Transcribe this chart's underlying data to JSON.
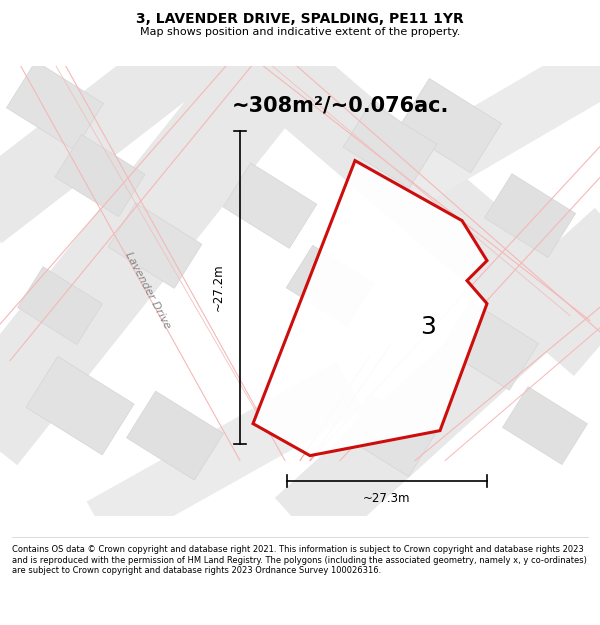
{
  "title": "3, LAVENDER DRIVE, SPALDING, PE11 1YR",
  "subtitle": "Map shows position and indicative extent of the property.",
  "area_label": "~308m²/~0.076ac.",
  "plot_number": "3",
  "dim_vertical": "~27.2m",
  "dim_horizontal": "~27.3m",
  "road_label": "Lavender Drive",
  "footer": "Contains OS data © Crown copyright and database right 2021. This information is subject to Crown copyright and database rights 2023 and is reproduced with the permission of HM Land Registry. The polygons (including the associated geometry, namely x, y co-ordinates) are subject to Crown copyright and database rights 2023 Ordnance Survey 100026316.",
  "bg_color": "#f5f5f5",
  "tile_light": "#e8e8e8",
  "tile_dark": "#d8d8d8",
  "road_pink": "#f5b8b8",
  "road_pink2": "#f0a0a0",
  "road_gray": "#c8c8c8",
  "plot_color": "#cc0000",
  "title_fs": 10,
  "subtitle_fs": 8,
  "area_fs": 15,
  "plot_num_fs": 18,
  "dim_fs": 8.5,
  "road_label_fs": 8
}
